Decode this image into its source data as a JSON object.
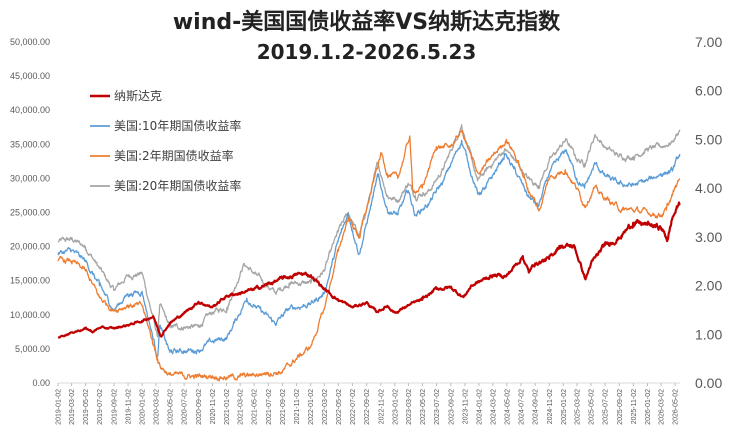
{
  "chart_data": {
    "type": "line",
    "title": "wind-美国国债收益率VS纳斯达克指数",
    "subtitle": "2019.1.2-2026.5.23",
    "legend_position": "top-left",
    "y_left": {
      "ylim": [
        0,
        50000
      ],
      "ticks": [
        "0.00",
        "5,000.00",
        "10,000.00",
        "15,000.00",
        "20,000.00",
        "25,000.00",
        "30,000.00",
        "35,000.00",
        "40,000.00",
        "45,000.00",
        "50,000.00"
      ]
    },
    "y_right": {
      "ylim": [
        0,
        7
      ],
      "ticks": [
        "0.00",
        "1.00",
        "2.00",
        "3.00",
        "4.00",
        "5.00",
        "6.00",
        "7.00"
      ]
    },
    "x_ticks": [
      "2019-01-02",
      "2019-03-02",
      "2019-05-02",
      "2019-07-02",
      "2019-09-02",
      "2019-11-02",
      "2020-01-02",
      "2020-03-02",
      "2020-05-02",
      "2020-07-02",
      "2020-09-02",
      "2020-11-02",
      "2021-01-02",
      "2021-03-02",
      "2021-05-02",
      "2021-07-02",
      "2021-09-02",
      "2021-11-02",
      "2022-01-02",
      "2022-03-02",
      "2022-05-02",
      "2022-07-02",
      "2022-09-02",
      "2022-11-02",
      "2023-01-02",
      "2023-03-02",
      "2023-05-02",
      "2023-07-02",
      "2023-09-02",
      "2023-11-02",
      "2024-01-02",
      "2024-03-02",
      "2024-05-02",
      "2024-07-02",
      "2024-09-02",
      "2024-11-02",
      "2025-01-02",
      "2025-03-02",
      "2025-05-02",
      "2025-07-02",
      "2025-09-02",
      "2025-11-02",
      "2026-01-02",
      "2026-03-02",
      "2026-05-02"
    ],
    "series": [
      {
        "name": "纳斯达克",
        "axis": "left",
        "color": "#C00000",
        "x": [
          "2019-01-02",
          "2019-03-01",
          "2019-05-01",
          "2019-06-03",
          "2019-07-01",
          "2019-09-01",
          "2019-11-01",
          "2020-01-02",
          "2020-02-19",
          "2020-03-23",
          "2020-05-01",
          "2020-07-01",
          "2020-09-02",
          "2020-11-01",
          "2021-01-04",
          "2021-03-01",
          "2021-05-01",
          "2021-07-01",
          "2021-09-01",
          "2021-11-19",
          "2022-01-03",
          "2022-03-01",
          "2022-05-01",
          "2022-07-01",
          "2022-09-01",
          "2022-10-14",
          "2022-12-01",
          "2023-01-05",
          "2023-03-01",
          "2023-05-01",
          "2023-07-01",
          "2023-09-01",
          "2023-10-27",
          "2023-12-01",
          "2024-01-02",
          "2024-03-01",
          "2024-05-01",
          "2024-07-10",
          "2024-08-05",
          "2024-09-01",
          "2024-11-01",
          "2024-12-16",
          "2025-02-19",
          "2025-04-08",
          "2025-05-01",
          "2025-07-01",
          "2025-09-01",
          "2025-11-01",
          "2026-01-02",
          "2026-03-01",
          "2026-03-30",
          "2026-04-20",
          "2026-05-15",
          "2026-05-22"
        ],
        "values": [
          6700,
          7400,
          8000,
          7500,
          8100,
          8000,
          8500,
          9100,
          9800,
          6900,
          8800,
          10200,
          11900,
          11100,
          12800,
          13200,
          13700,
          14500,
          15300,
          16000,
          15800,
          13800,
          12200,
          11100,
          11800,
          10400,
          11300,
          10300,
          11400,
          12200,
          13800,
          14000,
          12600,
          14300,
          14800,
          15800,
          15700,
          18600,
          16200,
          17500,
          18200,
          20100,
          20000,
          15200,
          17400,
          20200,
          21300,
          23500,
          23200,
          22800,
          21000,
          24200,
          26000,
          26300
        ]
      },
      {
        "name": "美国:10年期国债收益率",
        "axis": "right",
        "color": "#5B9BD5",
        "x": [
          "2019-01-02",
          "2019-03-01",
          "2019-05-01",
          "2019-07-01",
          "2019-09-01",
          "2019-11-01",
          "2020-01-02",
          "2020-03-09",
          "2020-03-18",
          "2020-05-01",
          "2020-07-01",
          "2020-09-01",
          "2020-11-01",
          "2021-01-04",
          "2021-03-31",
          "2021-05-01",
          "2021-08-01",
          "2021-10-01",
          "2022-01-03",
          "2022-03-01",
          "2022-05-01",
          "2022-06-14",
          "2022-08-01",
          "2022-10-21",
          "2022-12-01",
          "2023-01-15",
          "2023-03-01",
          "2023-04-01",
          "2023-06-01",
          "2023-08-01",
          "2023-10-19",
          "2023-12-27",
          "2024-02-01",
          "2024-04-25",
          "2024-06-01",
          "2024-08-01",
          "2024-09-16",
          "2024-11-01",
          "2025-01-14",
          "2025-03-01",
          "2025-04-04",
          "2025-05-20",
          "2025-07-01",
          "2025-09-01",
          "2025-11-01",
          "2026-01-02",
          "2026-03-01",
          "2026-04-20",
          "2026-05-22"
        ],
        "values": [
          2.66,
          2.72,
          2.5,
          2.0,
          1.5,
          1.83,
          1.88,
          0.54,
          1.18,
          0.63,
          0.66,
          0.68,
          0.85,
          0.93,
          1.74,
          1.6,
          1.22,
          1.52,
          1.63,
          1.83,
          2.9,
          3.48,
          2.65,
          4.24,
          3.55,
          3.45,
          3.95,
          3.45,
          3.7,
          4.15,
          4.98,
          3.88,
          4.0,
          4.7,
          4.4,
          3.85,
          3.62,
          4.3,
          4.79,
          4.2,
          4.0,
          4.5,
          4.25,
          4.08,
          4.06,
          4.15,
          4.3,
          4.35,
          4.7
        ]
      },
      {
        "name": "美国:2年期国债收益率",
        "axis": "right",
        "color": "#ED7D31",
        "x": [
          "2019-01-02",
          "2019-03-01",
          "2019-05-01",
          "2019-07-01",
          "2019-09-01",
          "2019-11-01",
          "2020-01-02",
          "2020-03-09",
          "2020-03-20",
          "2020-05-01",
          "2020-07-01",
          "2020-09-01",
          "2020-11-01",
          "2021-01-04",
          "2021-03-01",
          "2021-05-01",
          "2021-07-01",
          "2021-09-01",
          "2021-11-01",
          "2022-01-03",
          "2022-03-01",
          "2022-05-01",
          "2022-06-14",
          "2022-08-01",
          "2022-11-04",
          "2022-12-01",
          "2023-01-15",
          "2023-03-08",
          "2023-03-20",
          "2023-05-01",
          "2023-07-01",
          "2023-09-01",
          "2023-10-19",
          "2023-12-01",
          "2024-01-02",
          "2024-04-30",
          "2024-06-01",
          "2024-08-01",
          "2024-09-20",
          "2024-11-01",
          "2025-01-10",
          "2025-03-01",
          "2025-04-04",
          "2025-05-15",
          "2025-07-01",
          "2025-09-15",
          "2025-11-01",
          "2026-01-02",
          "2026-03-01",
          "2026-03-25",
          "2026-04-20",
          "2026-05-22"
        ],
        "values": [
          2.5,
          2.5,
          2.3,
          1.75,
          1.5,
          1.6,
          1.58,
          0.5,
          0.35,
          0.17,
          0.15,
          0.13,
          0.15,
          0.12,
          0.13,
          0.16,
          0.22,
          0.23,
          0.5,
          0.75,
          1.5,
          2.7,
          3.4,
          3.0,
          4.72,
          4.3,
          4.2,
          5.07,
          3.95,
          4.0,
          4.85,
          4.85,
          5.18,
          4.6,
          4.3,
          5.0,
          4.75,
          4.0,
          3.55,
          4.2,
          4.38,
          4.0,
          3.65,
          4.0,
          3.8,
          3.55,
          3.55,
          3.5,
          3.45,
          3.55,
          3.85,
          4.2
        ]
      },
      {
        "name": "美国:20年期国债收益率",
        "axis": "right",
        "color": "#A5A5A5",
        "x": [
          "2019-01-02",
          "2019-03-01",
          "2019-05-01",
          "2019-07-01",
          "2019-09-01",
          "2019-11-01",
          "2020-01-02",
          "2020-03-09",
          "2020-03-18",
          "2020-05-01",
          "2020-07-01",
          "2020-09-01",
          "2020-11-01",
          "2021-01-04",
          "2021-03-18",
          "2021-05-01",
          "2021-08-01",
          "2021-10-01",
          "2022-01-03",
          "2022-03-01",
          "2022-05-01",
          "2022-06-14",
          "2022-08-01",
          "2022-10-21",
          "2022-12-01",
          "2023-01-15",
          "2023-03-01",
          "2023-04-01",
          "2023-06-01",
          "2023-08-01",
          "2023-10-19",
          "2023-12-27",
          "2024-02-01",
          "2024-04-25",
          "2024-06-01",
          "2024-08-01",
          "2024-09-16",
          "2024-11-01",
          "2025-01-14",
          "2025-03-01",
          "2025-04-04",
          "2025-05-20",
          "2025-07-01",
          "2025-09-01",
          "2025-11-01",
          "2026-01-02",
          "2026-03-01",
          "2026-04-20",
          "2026-05-22"
        ],
        "values": [
          2.9,
          2.95,
          2.8,
          2.35,
          1.9,
          2.2,
          2.25,
          0.95,
          1.6,
          1.15,
          1.15,
          1.15,
          1.45,
          1.55,
          2.45,
          2.25,
          1.85,
          2.05,
          2.05,
          2.3,
          3.1,
          3.5,
          3.0,
          4.5,
          3.85,
          3.75,
          4.1,
          3.85,
          3.95,
          4.4,
          5.3,
          4.15,
          4.35,
          4.8,
          4.6,
          4.2,
          4.05,
          4.55,
          5.0,
          4.6,
          4.5,
          5.1,
          4.85,
          4.65,
          4.65,
          4.8,
          4.85,
          4.95,
          5.2
        ]
      }
    ]
  }
}
